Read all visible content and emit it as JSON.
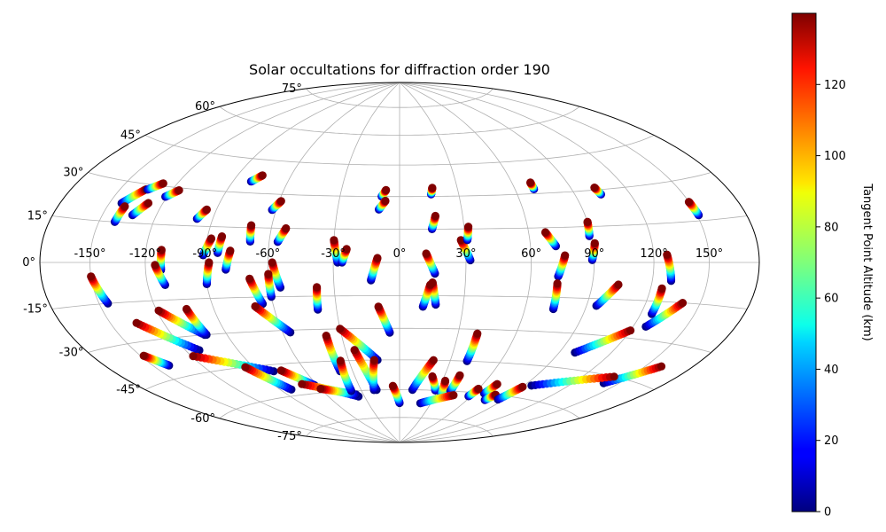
{
  "chart_data": {
    "type": "scatter",
    "projection": "hammer",
    "title": "Solar occultations for diffraction order 190",
    "grid": true,
    "lon_ticks": [
      "-150°",
      "-120°",
      "-90°",
      "-60°",
      "-30°",
      "0°",
      "30°",
      "60°",
      "90°",
      "120°",
      "150°"
    ],
    "lon_tick_values": [
      -150,
      -120,
      -90,
      -60,
      -30,
      0,
      30,
      60,
      90,
      120,
      150
    ],
    "lat_ticks": [
      "-75°",
      "-60°",
      "-45°",
      "-30°",
      "-15°",
      "0°",
      "15°",
      "30°",
      "45°",
      "60°",
      "75°"
    ],
    "lat_tick_values": [
      -75,
      -60,
      -45,
      -30,
      -15,
      0,
      15,
      30,
      45,
      60,
      75
    ],
    "colorbar": {
      "label": "Tangent Point Altitude (km)",
      "cmap": "jet",
      "range": [
        0,
        140
      ],
      "ticks": [
        "0",
        "20",
        "40",
        "60",
        "80",
        "100",
        "120"
      ],
      "tick_values": [
        0,
        20,
        40,
        60,
        80,
        100,
        120
      ]
    },
    "tracks": [
      {
        "lon_top": -150,
        "lat_top": -5,
        "lon_bottom": -145,
        "lat_bottom": -15
      },
      {
        "lon_top": -148,
        "lat_top": -35,
        "lon_bottom": -140,
        "lat_bottom": -40
      },
      {
        "lon_top": -135,
        "lat_top": 28,
        "lon_bottom": -143,
        "lat_bottom": 22
      },
      {
        "lon_top": -140,
        "lat_top": 21,
        "lon_bottom": -141,
        "lat_bottom": 15
      },
      {
        "lon_top": -128,
        "lat_top": 31,
        "lon_bottom": -134,
        "lat_bottom": 28
      },
      {
        "lon_top": -128,
        "lat_top": 23,
        "lon_bottom": -133,
        "lat_bottom": 18
      },
      {
        "lon_top": -116,
        "lat_top": 29,
        "lon_bottom": -121,
        "lat_bottom": 26
      },
      {
        "lon_top": -112,
        "lat_top": 5,
        "lon_bottom": -112,
        "lat_bottom": -3
      },
      {
        "lon_top": -115,
        "lat_top": -1,
        "lon_bottom": -111,
        "lat_bottom": -9
      },
      {
        "lon_top": -95,
        "lat_top": 22,
        "lon_bottom": -98,
        "lat_bottom": 18
      },
      {
        "lon_top": -88,
        "lat_top": 10,
        "lon_bottom": -91,
        "lat_bottom": 3
      },
      {
        "lon_top": -88,
        "lat_top": 0,
        "lon_bottom": -90,
        "lat_bottom": -9
      },
      {
        "lon_top": -83,
        "lat_top": 11,
        "lon_bottom": -84,
        "lat_bottom": 4
      },
      {
        "lon_top": -78,
        "lat_top": 5,
        "lon_bottom": -80,
        "lat_bottom": -3
      },
      {
        "lon_top": -76,
        "lat_top": 38,
        "lon_bottom": -80,
        "lat_bottom": 35
      },
      {
        "lon_top": -70,
        "lat_top": 16,
        "lon_bottom": -69,
        "lat_bottom": 9
      },
      {
        "lon_top": -59,
        "lat_top": 27,
        "lon_bottom": -62,
        "lat_bottom": 23
      },
      {
        "lon_top": -53,
        "lat_top": 15,
        "lon_bottom": -56,
        "lat_bottom": 9
      },
      {
        "lon_top": -58,
        "lat_top": 0,
        "lon_bottom": -55,
        "lat_bottom": -11
      },
      {
        "lon_top": -60,
        "lat_top": -5,
        "lon_bottom": -60,
        "lat_bottom": -15
      },
      {
        "lon_top": -69,
        "lat_top": -7,
        "lon_bottom": -65,
        "lat_bottom": -18
      },
      {
        "lon_top": -69,
        "lat_top": -19,
        "lon_bottom": -56,
        "lat_bottom": -31
      },
      {
        "lon_top": -30,
        "lat_top": 10,
        "lon_bottom": -28,
        "lat_bottom": 0
      },
      {
        "lon_top": -24,
        "lat_top": 6,
        "lon_bottom": -26,
        "lat_bottom": 0
      },
      {
        "lon_top": -10,
        "lat_top": 2,
        "lon_bottom": -13,
        "lat_bottom": -8
      },
      {
        "lon_top": -7,
        "lat_top": 33,
        "lon_bottom": -9,
        "lat_bottom": 30
      },
      {
        "lon_top": -7,
        "lat_top": 28,
        "lon_bottom": -10,
        "lat_bottom": 24
      },
      {
        "lon_top": -38,
        "lat_top": -11,
        "lon_bottom": -39,
        "lat_bottom": -21
      },
      {
        "lon_top": -10,
        "lat_top": -20,
        "lon_bottom": -5,
        "lat_bottom": -32
      },
      {
        "lon_top": 17,
        "lat_top": 34,
        "lon_bottom": 16,
        "lat_bottom": 31
      },
      {
        "lon_top": 17,
        "lat_top": 21,
        "lon_bottom": 15,
        "lat_bottom": 15
      },
      {
        "lon_top": 28,
        "lat_top": 10,
        "lon_bottom": 32,
        "lat_bottom": 1
      },
      {
        "lon_top": 32,
        "lat_top": 16,
        "lon_bottom": 31,
        "lat_bottom": 10
      },
      {
        "lon_top": 12,
        "lat_top": 4,
        "lon_bottom": 16,
        "lat_bottom": -5
      },
      {
        "lon_top": 15,
        "lat_top": -9,
        "lon_bottom": 17,
        "lat_bottom": -19
      },
      {
        "lon_top": 14,
        "lat_top": -10,
        "lon_bottom": 11,
        "lat_bottom": -20
      },
      {
        "lon_top": 70,
        "lat_top": 35,
        "lon_bottom": 70,
        "lat_bottom": 32
      },
      {
        "lon_top": 68,
        "lat_top": 13,
        "lon_bottom": 72,
        "lat_bottom": 7
      },
      {
        "lon_top": 76,
        "lat_top": 3,
        "lon_bottom": 73,
        "lat_bottom": -6
      },
      {
        "lon_top": 73,
        "lat_top": -9,
        "lon_bottom": 74,
        "lat_bottom": -20
      },
      {
        "lon_top": 90,
        "lat_top": 17,
        "lon_bottom": 89,
        "lat_bottom": 11
      },
      {
        "lon_top": 91,
        "lat_top": 8,
        "lon_bottom": 89,
        "lat_bottom": 1
      },
      {
        "lon_top": 103,
        "lat_top": 31,
        "lon_bottom": 104,
        "lat_bottom": 28
      },
      {
        "lon_top": 103,
        "lat_top": -9,
        "lon_bottom": 95,
        "lat_bottom": -18
      },
      {
        "lon_top": 127,
        "lat_top": 3,
        "lon_bottom": 130,
        "lat_bottom": -7
      },
      {
        "lon_top": 126,
        "lat_top": -10,
        "lon_bottom": 126,
        "lat_bottom": -20
      },
      {
        "lon_top": 150,
        "lat_top": 22,
        "lon_bottom": 151,
        "lat_bottom": 17
      },
      {
        "lon_top": 140,
        "lat_top": -15,
        "lon_bottom": 127,
        "lat_bottom": -25
      },
      {
        "lon_top": 120,
        "lat_top": -27,
        "lon_bottom": 99,
        "lat_bottom": -38
      },
      {
        "lon_top": 160,
        "lat_top": -38,
        "lon_bottom": 140,
        "lat_bottom": -48
      },
      {
        "lon_top": 140,
        "lat_top": -45,
        "lon_bottom": 95,
        "lat_bottom": -54
      },
      {
        "lon_top": -135,
        "lat_top": -23,
        "lon_bottom": -112,
        "lat_bottom": -36
      },
      {
        "lon_top": -119,
        "lat_top": -19,
        "lon_bottom": -102,
        "lat_bottom": -30
      },
      {
        "lon_top": -104,
        "lat_top": -19,
        "lon_bottom": -101,
        "lat_bottom": -30
      },
      {
        "lon_top": -119,
        "lat_top": -38,
        "lon_bottom": -80,
        "lat_bottom": -48
      },
      {
        "lon_top": -95,
        "lat_top": -45,
        "lon_bottom": -82,
        "lat_bottom": -57
      },
      {
        "lon_top": -75,
        "lat_top": -48,
        "lon_bottom": -62,
        "lat_bottom": -56
      },
      {
        "lon_top": -70,
        "lat_top": -55,
        "lon_bottom": -35,
        "lat_bottom": -63
      },
      {
        "lon_top": -60,
        "lat_top": -58,
        "lon_bottom": -36,
        "lat_bottom": -62
      },
      {
        "lon_top": -30,
        "lat_top": -30,
        "lon_bottom": -13,
        "lat_bottom": -45
      },
      {
        "lon_top": -38,
        "lat_top": -33,
        "lon_bottom": -38,
        "lat_bottom": -50
      },
      {
        "lon_top": -35,
        "lat_top": -45,
        "lon_bottom": -38,
        "lat_bottom": -60
      },
      {
        "lon_top": -25,
        "lat_top": -40,
        "lon_bottom": -18,
        "lat_bottom": -60
      },
      {
        "lon_top": -15,
        "lat_top": -45,
        "lon_bottom": -20,
        "lat_bottom": -60
      },
      {
        "lon_top": -5,
        "lat_top": -58,
        "lon_bottom": 0,
        "lat_bottom": -67
      },
      {
        "lon_top": 20,
        "lat_top": -45,
        "lon_bottom": 10,
        "lat_bottom": -60
      },
      {
        "lon_top": 22,
        "lat_top": -53,
        "lon_bottom": 28,
        "lat_bottom": -60
      },
      {
        "lon_top": 32,
        "lat_top": -55,
        "lon_bottom": 35,
        "lat_bottom": -63
      },
      {
        "lon_top": 40,
        "lat_top": -32,
        "lon_bottom": 40,
        "lat_bottom": -45
      },
      {
        "lon_top": 40,
        "lat_top": -52,
        "lon_bottom": 40,
        "lat_bottom": -60
      },
      {
        "lon_top": 45,
        "lat_top": -62,
        "lon_bottom": 20,
        "lat_bottom": -67
      },
      {
        "lon_top": 70,
        "lat_top": -55,
        "lon_bottom": 68,
        "lat_bottom": -60
      },
      {
        "lon_top": 78,
        "lat_top": -60,
        "lon_bottom": 75,
        "lat_bottom": -63
      },
      {
        "lon_top": 90,
        "lat_top": -55,
        "lon_bottom": 85,
        "lat_bottom": -62
      },
      {
        "lon_top": 60,
        "lat_top": -58,
        "lon_bottom": 58,
        "lat_bottom": -62
      }
    ]
  }
}
